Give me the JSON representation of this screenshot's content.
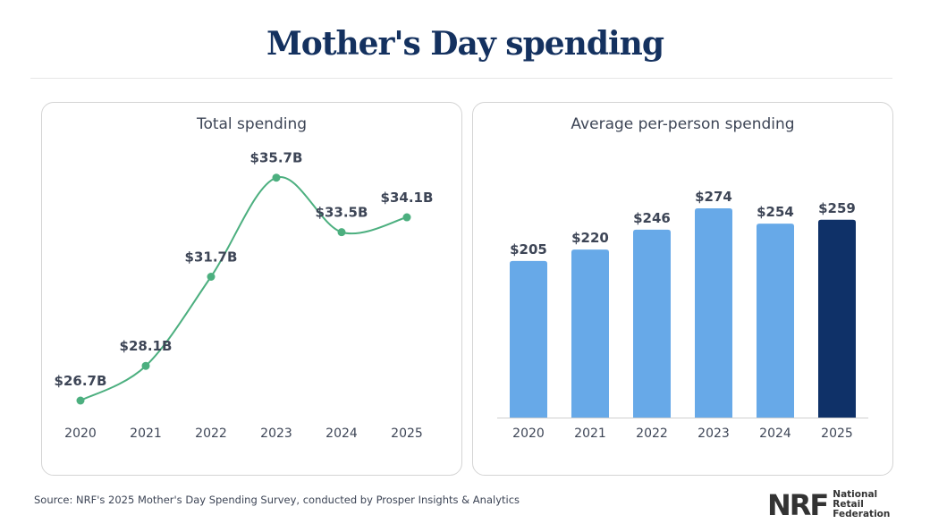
{
  "title": "Mother's Day spending",
  "source": "Source: NRF's 2025 Mother's Day Spending Survey, conducted by Prosper Insights & Analytics",
  "logo": {
    "mark": "NRF",
    "lines": [
      "National",
      "Retail",
      "Federation"
    ]
  },
  "chart_data": [
    {
      "type": "line",
      "title": "Total spending",
      "categories": [
        "2020",
        "2021",
        "2022",
        "2023",
        "2024",
        "2025"
      ],
      "values": [
        26.7,
        28.1,
        31.7,
        35.7,
        33.5,
        34.1
      ],
      "data_labels": [
        "$26.7B",
        "$28.1B",
        "$31.7B",
        "$35.7B",
        "$33.5B",
        "$34.1B"
      ],
      "unit": "billion USD",
      "smooth": true,
      "grid": false,
      "color": "#4caf7f"
    },
    {
      "type": "bar",
      "title": "Average per-person spending",
      "categories": [
        "2020",
        "2021",
        "2022",
        "2023",
        "2024",
        "2025"
      ],
      "values": [
        205,
        220,
        246,
        274,
        254,
        259
      ],
      "data_labels": [
        "$205",
        "$220",
        "$246",
        "$274",
        "$254",
        "$259"
      ],
      "unit": "USD",
      "ylim": [
        0,
        274
      ],
      "grid": false,
      "colors": [
        "#67a9e8",
        "#67a9e8",
        "#67a9e8",
        "#67a9e8",
        "#67a9e8",
        "#0f3168"
      ]
    }
  ]
}
